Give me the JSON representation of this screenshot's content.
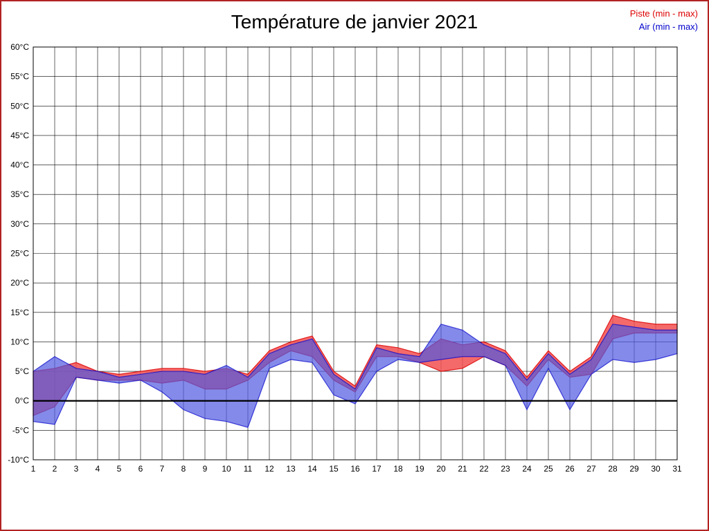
{
  "title": "Température de janvier 2021",
  "legend": {
    "piste": "Piste (min - max)",
    "air": "Air (min - max)"
  },
  "colors": {
    "piste": "#dd0000",
    "air": "#0000cc",
    "piste_fill": "#f25050",
    "air_fill": "#5058e0",
    "frame": "#b22222",
    "grid": "#000000"
  },
  "chart_data": {
    "type": "area",
    "title": "Température de janvier 2021",
    "xlabel": "",
    "ylabel": "",
    "y_unit": "°C",
    "ylim": [
      -10,
      60
    ],
    "ytick_step": 5,
    "grid": true,
    "legend_position": "top-right",
    "x": [
      1,
      2,
      3,
      4,
      5,
      6,
      7,
      8,
      9,
      10,
      11,
      12,
      13,
      14,
      15,
      16,
      17,
      18,
      19,
      20,
      21,
      22,
      23,
      24,
      25,
      26,
      27,
      28,
      29,
      30,
      31
    ],
    "series": [
      {
        "name": "Piste min",
        "values": [
          -2.5,
          -1,
          4,
          3.5,
          3.5,
          3.5,
          3,
          3.5,
          2,
          2,
          3.5,
          6.5,
          8.5,
          7.5,
          3.5,
          1.5,
          7.5,
          7.5,
          6.5,
          5,
          5.5,
          7.5,
          6,
          2.5,
          7,
          4,
          4.5,
          10.5,
          11.5,
          11.5,
          11.5
        ]
      },
      {
        "name": "Piste max",
        "values": [
          5,
          5.5,
          6.5,
          5,
          4.5,
          5,
          5.5,
          5.5,
          5,
          5.5,
          4.5,
          8.5,
          10,
          11,
          5,
          2.5,
          9.5,
          9,
          8,
          10.5,
          9.5,
          10,
          8.5,
          4,
          8.5,
          5,
          7.5,
          14.5,
          13.5,
          13,
          13
        ]
      },
      {
        "name": "Air min",
        "values": [
          -3.5,
          -4,
          4,
          3.5,
          3,
          3.5,
          1.5,
          -1.5,
          -3,
          -3.5,
          -4.5,
          5.5,
          7,
          6.5,
          1,
          -0.5,
          5,
          7,
          6.5,
          7,
          7.5,
          7.5,
          6,
          -1.5,
          5.5,
          -1.5,
          4.5,
          7,
          6.5,
          7,
          8
        ]
      },
      {
        "name": "Air max",
        "values": [
          5,
          7.5,
          5.5,
          5,
          4,
          4.5,
          5,
          5,
          4.5,
          6,
          4,
          8,
          9.5,
          10.5,
          4.5,
          2,
          9,
          8,
          7.5,
          13,
          12,
          9.5,
          8,
          3.5,
          8,
          4.5,
          7,
          13,
          12.5,
          12,
          12
        ]
      }
    ]
  }
}
